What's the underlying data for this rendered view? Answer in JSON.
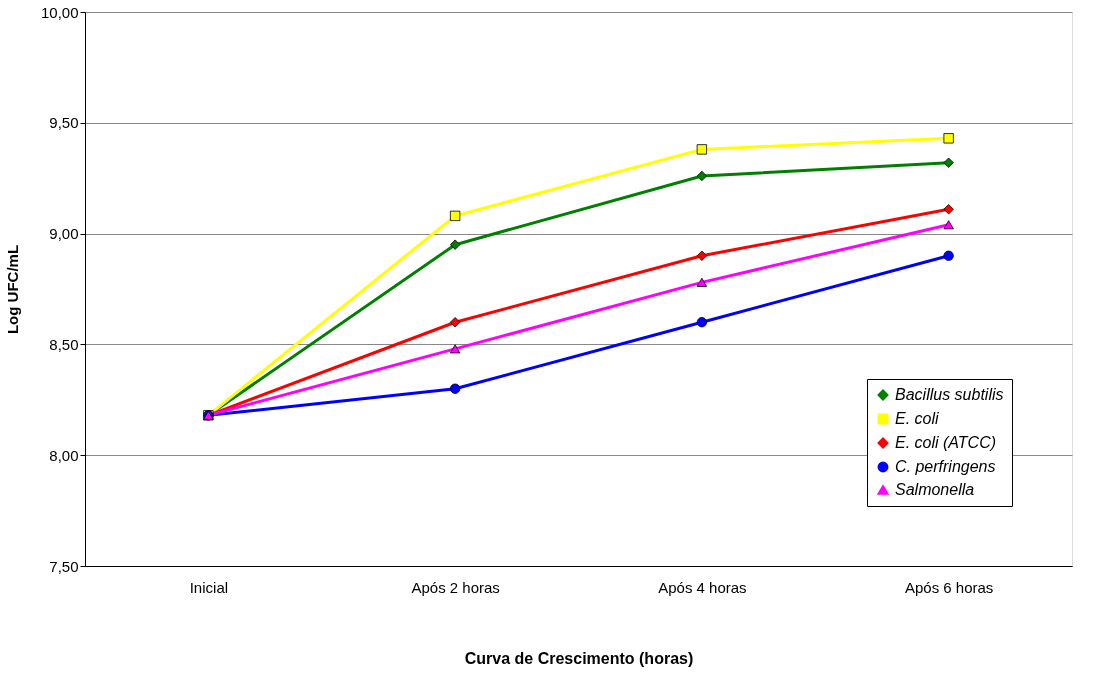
{
  "chart_data": {
    "type": "line",
    "xlabel": "Curva de Crescimento (horas)",
    "ylabel": "Log UFC/mL",
    "categories": [
      "Inicial",
      "Após 2 horas",
      "Após 4 horas",
      "Após 6 horas"
    ],
    "series": [
      {
        "name": "Bacillus subtilis",
        "color": "#008000",
        "marker": "diamond",
        "values": [
          8.18,
          8.95,
          9.26,
          9.32
        ]
      },
      {
        "name": "E. coli",
        "color": "#ffff00",
        "marker": "square",
        "values": [
          8.18,
          9.08,
          9.38,
          9.43
        ]
      },
      {
        "name": "E. coli (ATCC)",
        "color": "#ff0000",
        "marker": "diamond",
        "values": [
          8.18,
          8.6,
          8.9,
          9.11
        ]
      },
      {
        "name": "C. perfringens",
        "color": "#0000ff",
        "marker": "circle",
        "values": [
          8.18,
          8.3,
          8.6,
          8.9
        ]
      },
      {
        "name": "Salmonella",
        "color": "#ff00ff",
        "marker": "triangle",
        "values": [
          8.18,
          8.48,
          8.78,
          9.04
        ]
      }
    ],
    "ylim": [
      7.5,
      10.0
    ],
    "yticks": [
      {
        "value": 7.5,
        "label": "7,50"
      },
      {
        "value": 8.0,
        "label": "8,00"
      },
      {
        "value": 8.5,
        "label": "8,50"
      },
      {
        "value": 9.0,
        "label": "9,00"
      },
      {
        "value": 9.5,
        "label": "9,50"
      },
      {
        "value": 10.0,
        "label": "10,00"
      }
    ],
    "grid": "y",
    "legend": "bottom right",
    "line_style": "solid"
  }
}
